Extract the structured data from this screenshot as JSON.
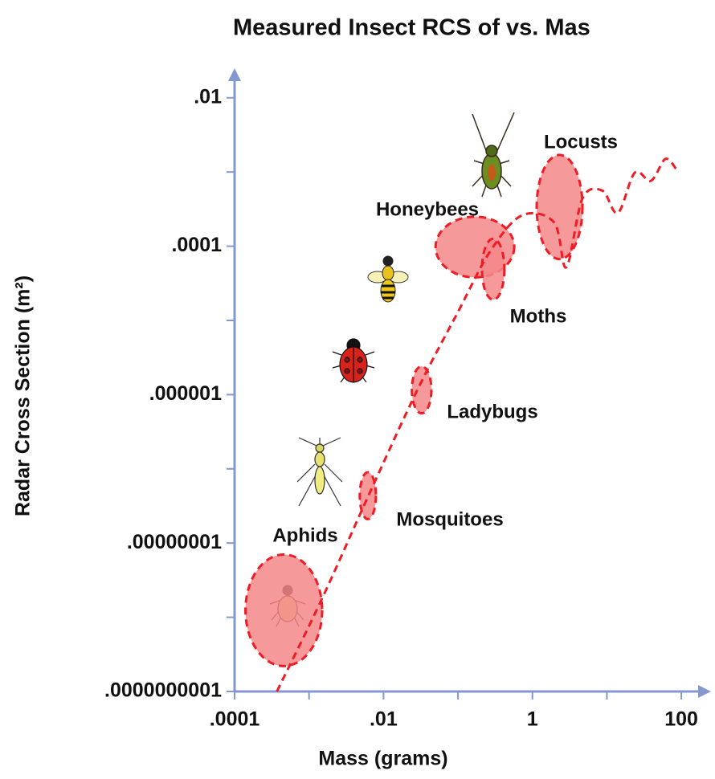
{
  "chart_data": {
    "type": "scatter",
    "title": "Measured Insect RCS of vs. Mas",
    "x_label": "Mass (grams)",
    "y_label": "Radar Cross Section (m²)",
    "xscale": "log",
    "yscale": "log",
    "axis_color": "#8497cf",
    "xlim": [
      0.0001,
      250
    ],
    "ylim": [
      1e-10,
      0.025
    ],
    "xticks": [
      {
        "value": 0.0001,
        "label": ".0001"
      },
      {
        "value": 0.01,
        "label": ".01"
      },
      1,
      100
    ],
    "xminor_ticks": [
      0.001,
      0.1,
      10
    ],
    "yticks": [
      {
        "value": 0.01,
        "label": ".01"
      },
      {
        "value": 0.0001,
        "label": ".0001"
      },
      {
        "value": 1e-06,
        "label": ".000001"
      },
      {
        "value": 1e-08,
        "label": ".00000001"
      },
      {
        "value": 1e-10,
        "label": ".0000000001"
      }
    ],
    "yminor_ticks": [
      0.001,
      1e-05,
      1e-07,
      1e-09
    ],
    "regions": [
      {
        "name": "Aphids",
        "color": "#f4878a",
        "mass": [
          0.00014,
          0.0015
        ],
        "rcs": [
          2.2e-10,
          7e-09
        ]
      },
      {
        "name": "Mosquitoes",
        "color": "#f4878a",
        "mass": [
          0.0048,
          0.0079
        ],
        "rcs": [
          2.1e-08,
          9e-08
        ]
      },
      {
        "name": "Ladybugs",
        "color": "#f4878a",
        "mass": [
          0.024,
          0.044
        ],
        "rcs": [
          5.6e-07,
          2.4e-06
        ]
      },
      {
        "name": "Moths",
        "color": "#f4878a",
        "mass": [
          0.05,
          0.57
        ],
        "rcs": [
          3.8e-05,
          0.00025
        ]
      },
      {
        "name": "Honeybees",
        "color": "#f4878a",
        "mass": [
          0.21,
          0.42
        ],
        "rcs": [
          1.9e-05,
          0.000126
        ]
      },
      {
        "name": "Locusts",
        "color": "#f4878a",
        "mass": [
          1.14,
          4.7
        ],
        "rcs": [
          6.7e-05,
          0.0017
        ]
      }
    ],
    "trend": {
      "color": "#ee1c25",
      "x": [
        0.00037,
        0.0015,
        0.0065,
        0.029,
        0.1,
        0.27,
        0.72,
        1.95,
        2.85,
        4.7,
        8.7,
        14,
        23.7,
        39,
        61,
        85
      ],
      "y": [
        1e-10,
        1.8e-09,
        4.7e-08,
        1.2e-06,
        1.3e-05,
        8.5e-05,
        0.00026,
        0.00021,
        5.2e-05,
        0.00044,
        0.00056,
        0.00028,
        0.00098,
        0.00076,
        0.0015,
        0.0011
      ]
    }
  }
}
